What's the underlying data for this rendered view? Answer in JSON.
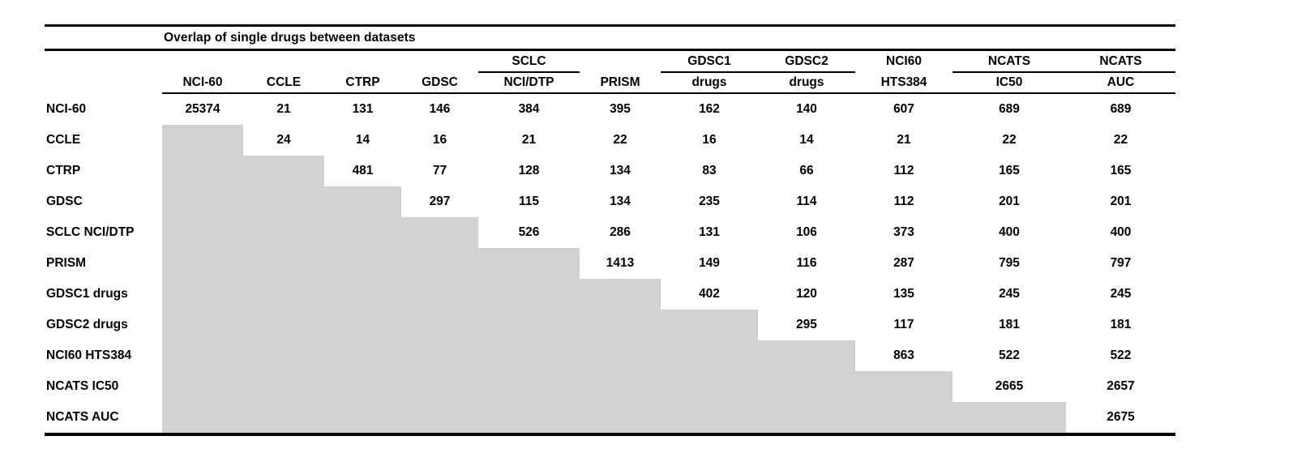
{
  "title": "Overlap of single drugs between datasets",
  "matrix": {
    "shaded_cell_color": "#d2d2d2",
    "line_color": "#000000",
    "group_header": [
      {
        "text": "",
        "underline": false
      },
      {
        "text": "",
        "underline": false
      },
      {
        "text": "",
        "underline": false
      },
      {
        "text": "",
        "underline": false
      },
      {
        "text": "",
        "underline": false
      },
      {
        "text": "SCLC",
        "underline": true
      },
      {
        "text": "",
        "underline": false
      },
      {
        "text": "GDSC1",
        "underline": true
      },
      {
        "text": "GDSC2",
        "underline": true
      },
      {
        "text": "NCI60",
        "underline": false
      },
      {
        "text": "NCATS",
        "underline": true
      },
      {
        "text": "NCATS",
        "underline": true
      }
    ],
    "column_header": [
      "",
      "NCI-60",
      "CCLE",
      "CTRP",
      "GDSC",
      "NCI/DTP",
      "PRISM",
      "drugs",
      "drugs",
      "HTS384",
      "IC50",
      "AUC"
    ],
    "rows": [
      {
        "label": "NCI-60",
        "values": [
          25374,
          21,
          131,
          146,
          384,
          395,
          162,
          140,
          607,
          689,
          689
        ]
      },
      {
        "label": "CCLE",
        "values": [
          null,
          24,
          14,
          16,
          21,
          22,
          16,
          14,
          21,
          22,
          22
        ]
      },
      {
        "label": "CTRP",
        "values": [
          null,
          null,
          481,
          77,
          128,
          134,
          83,
          66,
          112,
          165,
          165
        ]
      },
      {
        "label": "GDSC",
        "values": [
          null,
          null,
          null,
          297,
          115,
          134,
          235,
          114,
          112,
          201,
          201
        ]
      },
      {
        "label": "SCLC NCI/DTP",
        "values": [
          null,
          null,
          null,
          null,
          526,
          286,
          131,
          106,
          373,
          400,
          400
        ]
      },
      {
        "label": "PRISM",
        "values": [
          null,
          null,
          null,
          null,
          null,
          1413,
          149,
          116,
          287,
          795,
          797
        ]
      },
      {
        "label": "GDSC1 drugs",
        "values": [
          null,
          null,
          null,
          null,
          null,
          null,
          402,
          120,
          135,
          245,
          245
        ]
      },
      {
        "label": "GDSC2 drugs",
        "values": [
          null,
          null,
          null,
          null,
          null,
          null,
          null,
          295,
          117,
          181,
          181
        ]
      },
      {
        "label": "NCI60 HTS384",
        "values": [
          null,
          null,
          null,
          null,
          null,
          null,
          null,
          null,
          863,
          522,
          522
        ]
      },
      {
        "label": "NCATS IC50",
        "values": [
          null,
          null,
          null,
          null,
          null,
          null,
          null,
          null,
          null,
          2665,
          2657
        ]
      },
      {
        "label": "NCATS AUC",
        "values": [
          null,
          null,
          null,
          null,
          null,
          null,
          null,
          null,
          null,
          null,
          2675
        ]
      }
    ]
  }
}
